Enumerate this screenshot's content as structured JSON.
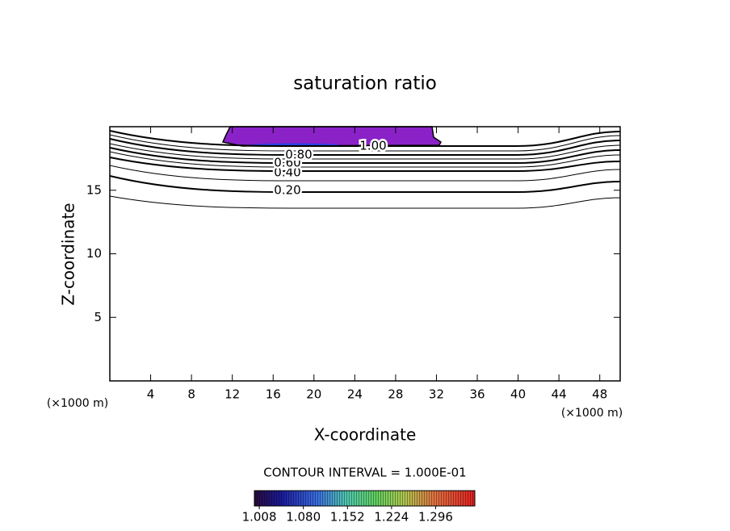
{
  "chart_data": {
    "type": "contour",
    "title": "saturation ratio",
    "x_label": "X-coordinate",
    "y_label": "Z-coordinate",
    "x_unit": "(×1000 m)",
    "y_unit": "(×1000 m)",
    "xlim": [
      0,
      50
    ],
    "xticks": [
      4,
      8,
      12,
      16,
      20,
      24,
      28,
      32,
      36,
      40,
      44,
      48
    ],
    "ylim": [
      0,
      20
    ],
    "yticks": [
      5,
      10,
      15
    ],
    "contour_levels": [
      {
        "value": 0.2,
        "label": "0.20"
      },
      {
        "value": 0.4,
        "label": "0.40"
      },
      {
        "value": 0.6,
        "label": "0.60"
      },
      {
        "value": 0.8,
        "label": "0.80"
      },
      {
        "value": 1.0,
        "label": "1.00"
      }
    ],
    "contour_interval_text": "CONTOUR INTERVAL = 1.000E-01",
    "colorbar": {
      "lim": [
        1.0,
        1.36
      ],
      "ticks": [
        1.008,
        {
          "value": 1.08,
          "label": "1.080"
        },
        1.152,
        1.224,
        1.296
      ]
    }
  }
}
